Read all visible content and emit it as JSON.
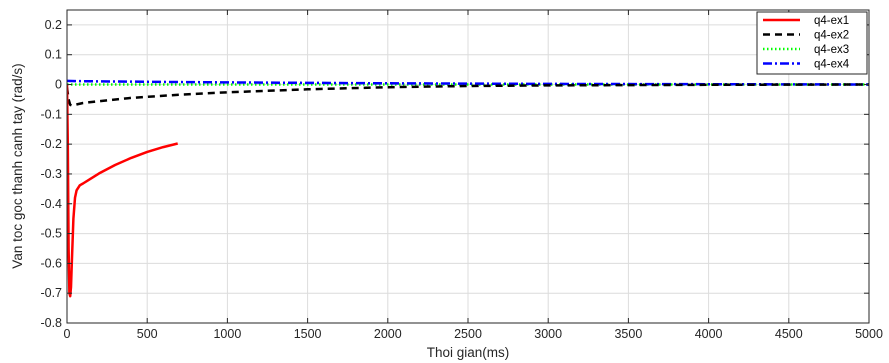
{
  "chart_data": {
    "type": "line",
    "title": "",
    "xlabel": "Thoi gian(ms)",
    "ylabel": "Van toc goc thanh canh tay (rad/s)",
    "xlim": [
      0,
      5000
    ],
    "ylim": [
      -0.8,
      0.25
    ],
    "xticks": [
      0,
      500,
      1000,
      1500,
      2000,
      2500,
      3000,
      3500,
      4000,
      4500,
      5000
    ],
    "yticks": [
      0.2,
      0.1,
      0,
      -0.1,
      -0.2,
      -0.3,
      -0.4,
      -0.5,
      -0.6,
      -0.7,
      -0.8
    ],
    "xtick_labels": [
      "0",
      "500",
      "1000",
      "1500",
      "2000",
      "2500",
      "3000",
      "3500",
      "4000",
      "4500",
      "5000"
    ],
    "ytick_labels": [
      "0.2",
      "0.1",
      "0",
      "-0.1",
      "-0.2",
      "-0.3",
      "-0.4",
      "-0.5",
      "-0.6",
      "-0.7",
      "-0.8"
    ],
    "grid": true,
    "legend_position": "top-right",
    "series": [
      {
        "name": "q4-ex1",
        "color": "#ff0000",
        "style": "solid",
        "x": [
          0,
          5,
          10,
          15,
          20,
          25,
          30,
          40,
          50,
          60,
          80,
          100,
          150,
          200,
          300,
          400,
          500,
          600,
          690
        ],
        "y": [
          0,
          -0.2,
          -0.55,
          -0.7,
          -0.71,
          -0.68,
          -0.6,
          -0.45,
          -0.38,
          -0.355,
          -0.338,
          -0.332,
          -0.315,
          -0.298,
          -0.27,
          -0.246,
          -0.226,
          -0.21,
          -0.198
        ]
      },
      {
        "name": "q4-ex2",
        "color": "#000000",
        "style": "dashed",
        "x": [
          0,
          10,
          20,
          30,
          50,
          100,
          200,
          400,
          700,
          1000,
          1500,
          2000,
          2500,
          3000,
          4000,
          5000
        ],
        "y": [
          -0.01,
          -0.05,
          -0.068,
          -0.07,
          -0.068,
          -0.062,
          -0.056,
          -0.045,
          -0.034,
          -0.026,
          -0.016,
          -0.009,
          -0.005,
          -0.003,
          -0.001,
          0
        ]
      },
      {
        "name": "q4-ex3",
        "color": "#00ff00",
        "style": "dotted",
        "x": [
          0,
          5000
        ],
        "y": [
          0,
          0
        ]
      },
      {
        "name": "q4-ex4",
        "color": "#0000ff",
        "style": "dashdot",
        "x": [
          0,
          100,
          500,
          1000,
          2000,
          3000,
          4000,
          5000
        ],
        "y": [
          0.012,
          0.011,
          0.009,
          0.007,
          0.004,
          0.002,
          0.001,
          0
        ]
      }
    ]
  }
}
